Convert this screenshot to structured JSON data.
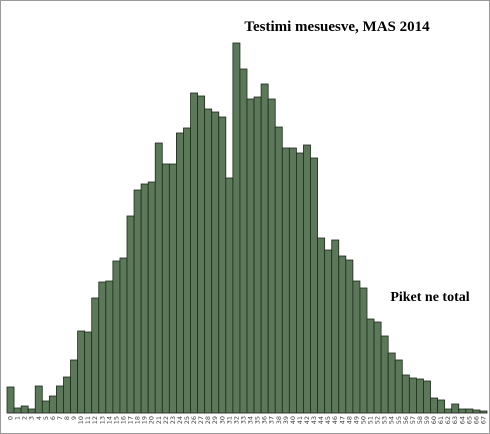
{
  "chart_data": {
    "type": "bar",
    "title": "Testimi mesuesve, MAS 2014",
    "annotation": "Piket ne total",
    "color": "#5b7858",
    "categories": [
      "0",
      "1",
      "2",
      "3",
      "4",
      "5",
      "6",
      "7",
      "8",
      "9",
      "10",
      "11",
      "12",
      "13",
      "14",
      "15",
      "16",
      "17",
      "18",
      "19",
      "20",
      "21",
      "22",
      "23",
      "24",
      "25",
      "26",
      "27",
      "28",
      "29",
      "30",
      "31",
      "32",
      "33",
      "34",
      "35",
      "36",
      "37",
      "38",
      "39",
      "40",
      "41",
      "42",
      "43",
      "44",
      "45",
      "46",
      "47",
      "48",
      "49",
      "50",
      "51",
      "52",
      "53",
      "54",
      "55",
      "56",
      "57",
      "58",
      "59",
      "60",
      "61",
      "62",
      "63",
      "64",
      "65",
      "66",
      "67"
    ],
    "values": [
      26,
      5,
      7,
      4,
      27,
      12,
      17,
      27,
      36,
      53,
      82,
      81,
      115,
      131,
      132,
      152,
      155,
      197,
      223,
      229,
      231,
      270,
      249,
      249,
      280,
      285,
      320,
      317,
      304,
      301,
      296,
      235,
      370,
      344,
      314,
      316,
      329,
      314,
      286,
      265,
      265,
      260,
      268,
      255,
      175,
      163,
      173,
      157,
      153,
      132,
      125,
      94,
      91,
      77,
      60,
      53,
      38,
      35,
      34,
      32,
      15,
      13,
      4,
      9,
      4,
      4,
      3,
      2
    ]
  }
}
